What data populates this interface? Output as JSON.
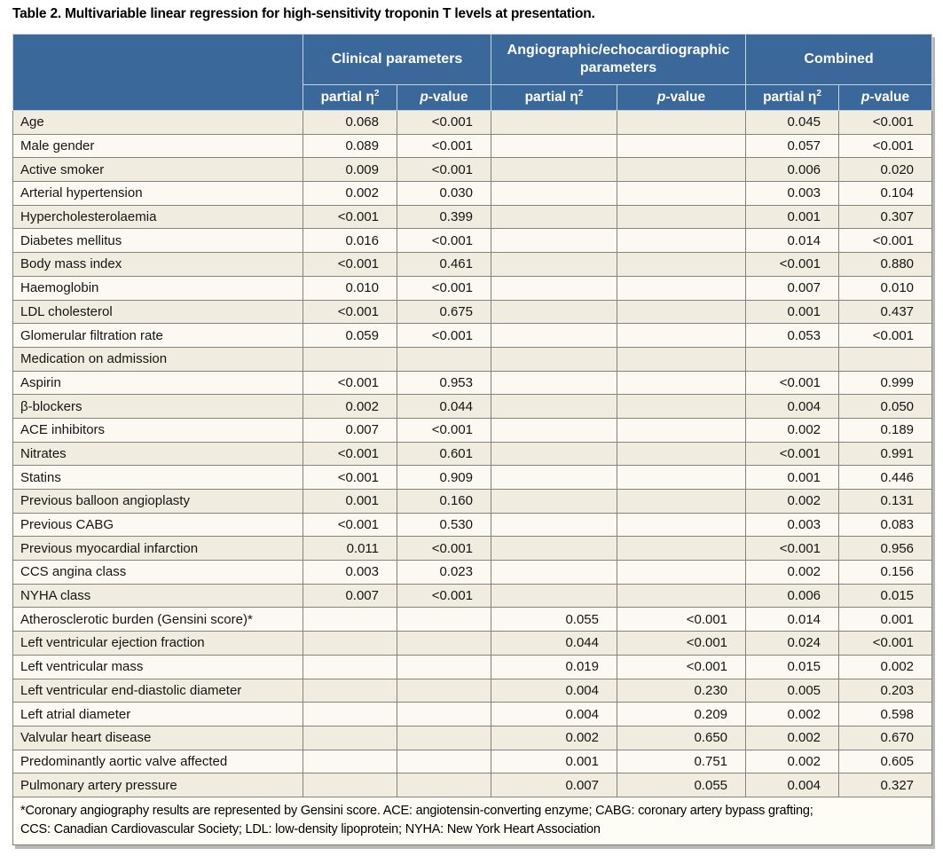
{
  "title": "Table 2. Multivariable linear regression for high-sensitivity troponin T levels at presentation.",
  "colors": {
    "header_blue": "#3b689a",
    "row_cream": "#f0ece0",
    "row_offwhite": "#fbf9f1",
    "grid_line": "#84847c"
  },
  "table": {
    "groups": [
      {
        "label": "Clinical parameters"
      },
      {
        "label": "Angiographic/echocardiographic parameters"
      },
      {
        "label": "Combined"
      }
    ],
    "subheader": {
      "eta_base": "partial η",
      "eta_sup": "2",
      "p_italic": "p",
      "p_rest": "-value"
    },
    "rows": [
      {
        "label": "Age",
        "values": [
          "0.068",
          "<0.001",
          "",
          "",
          "0.045",
          "<0.001"
        ]
      },
      {
        "label": "Male gender",
        "values": [
          "0.089",
          "<0.001",
          "",
          "",
          "0.057",
          "<0.001"
        ]
      },
      {
        "label": "Active smoker",
        "values": [
          "0.009",
          "<0.001",
          "",
          "",
          "0.006",
          "0.020"
        ]
      },
      {
        "label": "Arterial hypertension",
        "values": [
          "0.002",
          "0.030",
          "",
          "",
          "0.003",
          "0.104"
        ]
      },
      {
        "label": "Hypercholesterolaemia",
        "values": [
          "<0.001",
          "0.399",
          "",
          "",
          "0.001",
          "0.307"
        ]
      },
      {
        "label": "Diabetes mellitus",
        "values": [
          "0.016",
          "<0.001",
          "",
          "",
          "0.014",
          "<0.001"
        ]
      },
      {
        "label": "Body mass index",
        "values": [
          "<0.001",
          "0.461",
          "",
          "",
          "<0.001",
          "0.880"
        ]
      },
      {
        "label": "Haemoglobin",
        "values": [
          "0.010",
          "<0.001",
          "",
          "",
          "0.007",
          "0.010"
        ]
      },
      {
        "label": "LDL cholesterol",
        "values": [
          "<0.001",
          "0.675",
          "",
          "",
          "0.001",
          "0.437"
        ]
      },
      {
        "label": "Glomerular filtration rate",
        "values": [
          "0.059",
          "<0.001",
          "",
          "",
          "0.053",
          "<0.001"
        ]
      },
      {
        "label": "Medication on admission",
        "values": [
          "",
          "",
          "",
          "",
          "",
          ""
        ]
      },
      {
        "label": "Aspirin",
        "values": [
          "<0.001",
          "0.953",
          "",
          "",
          "<0.001",
          "0.999"
        ]
      },
      {
        "label": "β-blockers",
        "values": [
          "0.002",
          "0.044",
          "",
          "",
          "0.004",
          "0.050"
        ]
      },
      {
        "label": "ACE inhibitors",
        "values": [
          "0.007",
          "<0.001",
          "",
          "",
          "0.002",
          "0.189"
        ]
      },
      {
        "label": "Nitrates",
        "values": [
          "<0.001",
          "0.601",
          "",
          "",
          "<0.001",
          "0.991"
        ]
      },
      {
        "label": "Statins",
        "values": [
          "<0.001",
          "0.909",
          "",
          "",
          "0.001",
          "0.446"
        ]
      },
      {
        "label": "Previous balloon angioplasty",
        "values": [
          "0.001",
          "0.160",
          "",
          "",
          "0.002",
          "0.131"
        ]
      },
      {
        "label": "Previous CABG",
        "values": [
          "<0.001",
          "0.530",
          "",
          "",
          "0.003",
          "0.083"
        ]
      },
      {
        "label": "Previous myocardial infarction",
        "values": [
          "0.011",
          "<0.001",
          "",
          "",
          "<0.001",
          "0.956"
        ]
      },
      {
        "label": "CCS angina class",
        "values": [
          "0.003",
          "0.023",
          "",
          "",
          "0.002",
          "0.156"
        ]
      },
      {
        "label": "NYHA class",
        "values": [
          "0.007",
          "<0.001",
          "",
          "",
          "0.006",
          "0.015"
        ]
      },
      {
        "label": "Atherosclerotic burden (Gensini score)*",
        "values": [
          "",
          "",
          "0.055",
          "<0.001",
          "0.014",
          "0.001"
        ]
      },
      {
        "label": "Left ventricular ejection fraction",
        "values": [
          "",
          "",
          "0.044",
          "<0.001",
          "0.024",
          "<0.001"
        ]
      },
      {
        "label": "Left ventricular mass",
        "values": [
          "",
          "",
          "0.019",
          "<0.001",
          "0.015",
          "0.002"
        ]
      },
      {
        "label": "Left ventricular end-diastolic diameter",
        "values": [
          "",
          "",
          "0.004",
          "0.230",
          "0.005",
          "0.203"
        ]
      },
      {
        "label": "Left atrial diameter",
        "values": [
          "",
          "",
          "0.004",
          "0.209",
          "0.002",
          "0.598"
        ]
      },
      {
        "label": "Valvular heart disease",
        "values": [
          "",
          "",
          "0.002",
          "0.650",
          "0.002",
          "0.670"
        ]
      },
      {
        "label": "Predominantly aortic valve affected",
        "values": [
          "",
          "",
          "0.001",
          "0.751",
          "0.002",
          "0.605"
        ]
      },
      {
        "label": "Pulmonary artery pressure",
        "values": [
          "",
          "",
          "0.007",
          "0.055",
          "0.004",
          "0.327"
        ]
      }
    ],
    "footnote_line1": "*Coronary angiography results are represented by Gensini score. ACE: angiotensin-converting enzyme; CABG: coronary artery bypass grafting;",
    "footnote_line2": "CCS: Canadian Cardiovascular Society; LDL: low-density lipoprotein; NYHA: New York Heart Association"
  }
}
